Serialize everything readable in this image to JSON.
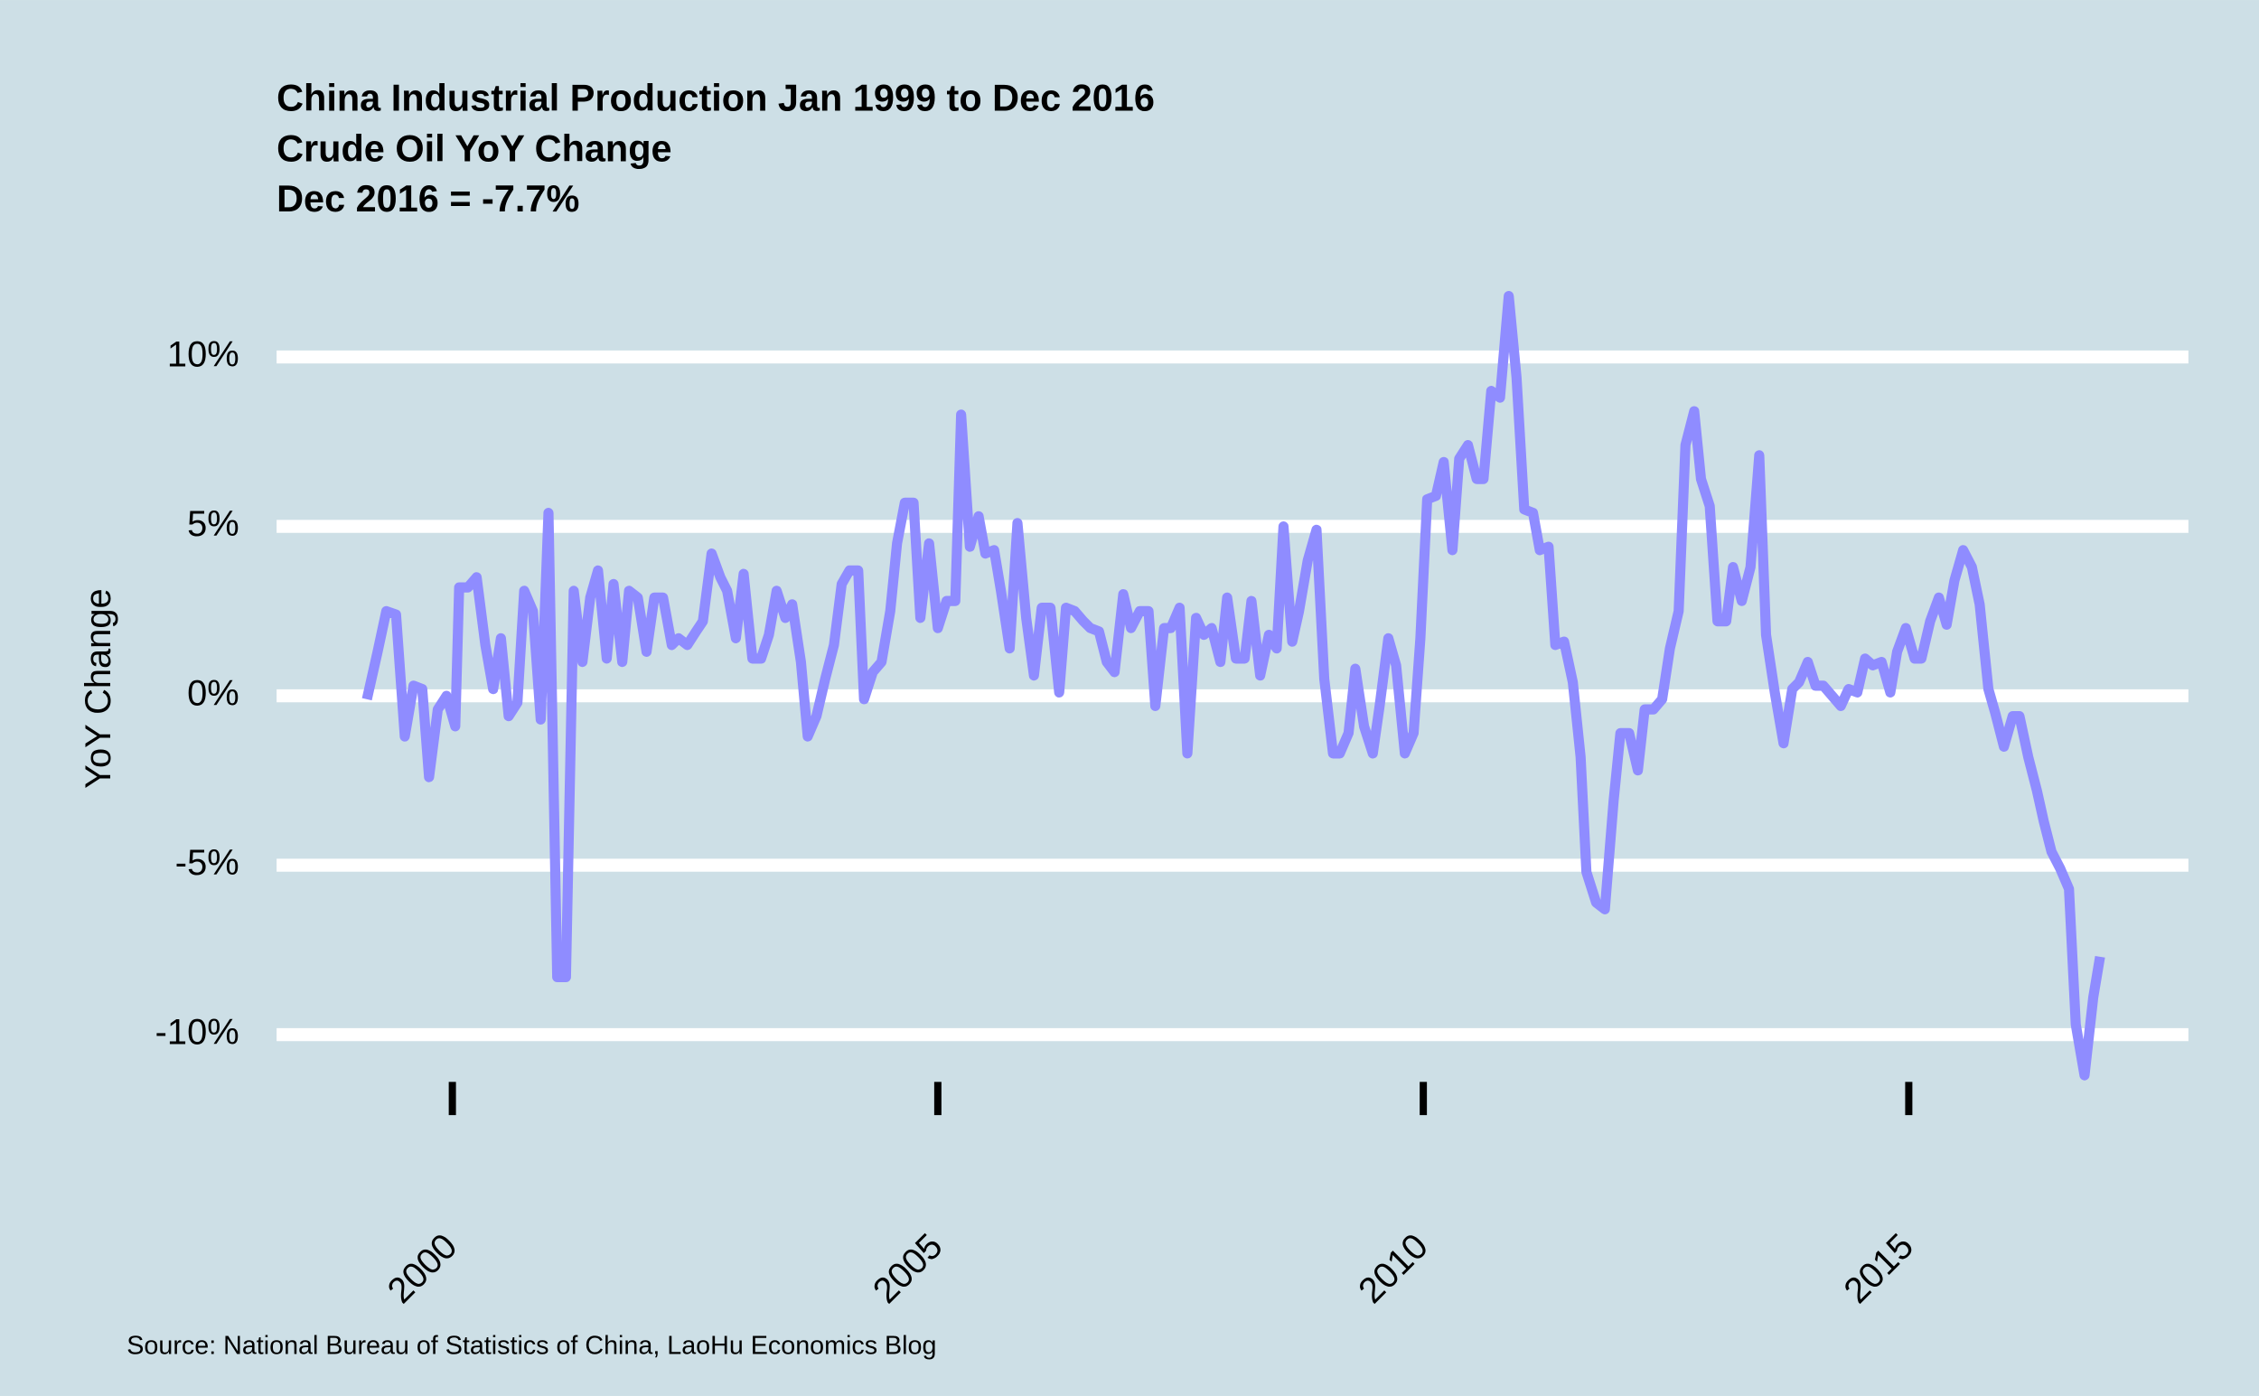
{
  "chart_data": {
    "type": "line",
    "title": "China Industrial Production Jan 1999 to Dec 2016",
    "subtitle": [
      "Crude Oil YoY Change",
      "Dec 2016 = -7.7%"
    ],
    "ylabel": "YoY Change",
    "caption": "Source: National Bureau of Statistics of China, LaoHu Economics Blog",
    "xlim": [
      1998.19,
      2017.88
    ],
    "xticks": [
      2000,
      2005,
      2010,
      2015
    ],
    "ylim": [
      -12.5,
      12.5
    ],
    "yticks": [
      {
        "value": -10,
        "label": "-10%"
      },
      {
        "value": -5,
        "label": "-5%"
      },
      {
        "value": 0,
        "label": "0%"
      },
      {
        "value": 5,
        "label": "5%"
      },
      {
        "value": 10,
        "label": "10%"
      }
    ],
    "grid": true,
    "background": "#cddfe6",
    "series": [
      {
        "color": "#8f8cff",
        "x": [
          1999.12,
          1999.23,
          1999.32,
          1999.42,
          1999.51,
          1999.6,
          1999.69,
          1999.76,
          1999.85,
          1999.94,
          2000.03,
          2000.07,
          2000.16,
          2000.25,
          2000.34,
          2000.42,
          2000.5,
          2000.58,
          2000.67,
          2000.74,
          2000.83,
          2000.91,
          2000.99,
          2001.08,
          2001.17,
          2001.25,
          2001.34,
          2001.42,
          2001.5,
          2001.59,
          2001.66,
          2001.75,
          2001.82,
          2001.91,
          2002.0,
          2002.08,
          2002.17,
          2002.26,
          2002.33,
          2002.42,
          2002.51,
          2002.58,
          2002.67,
          2002.76,
          2002.83,
          2002.92,
          2003.0,
          2003.09,
          2003.18,
          2003.26,
          2003.34,
          2003.43,
          2003.5,
          2003.59,
          2003.66,
          2003.75,
          2003.84,
          2003.93,
          2004.01,
          2004.09,
          2004.18,
          2004.24,
          2004.33,
          2004.42,
          2004.51,
          2004.58,
          2004.66,
          2004.75,
          2004.82,
          2004.91,
          2005.0,
          2005.09,
          2005.18,
          2005.24,
          2005.33,
          2005.42,
          2005.49,
          2005.58,
          2005.65,
          2005.74,
          2005.82,
          2005.91,
          2005.99,
          2006.07,
          2006.16,
          2006.25,
          2006.32,
          2006.41,
          2006.5,
          2006.57,
          2006.66,
          2006.74,
          2006.82,
          2006.91,
          2006.99,
          2007.08,
          2007.17,
          2007.24,
          2007.33,
          2007.4,
          2007.49,
          2007.57,
          2007.66,
          2007.74,
          2007.82,
          2007.91,
          2007.98,
          2008.07,
          2008.16,
          2008.23,
          2008.32,
          2008.41,
          2008.49,
          2008.56,
          2008.65,
          2008.72,
          2008.81,
          2008.9,
          2008.98,
          2009.07,
          2009.14,
          2009.23,
          2009.3,
          2009.39,
          2009.48,
          2009.55,
          2009.64,
          2009.72,
          2009.81,
          2009.9,
          2009.97,
          2010.04,
          2010.13,
          2010.21,
          2010.3,
          2010.37,
          2010.46,
          2010.55,
          2010.62,
          2010.7,
          2010.79,
          2010.88,
          2010.96,
          2011.04,
          2011.13,
          2011.2,
          2011.29,
          2011.36,
          2011.45,
          2011.54,
          2011.62,
          2011.68,
          2011.78,
          2011.87,
          2011.96,
          2012.03,
          2012.12,
          2012.21,
          2012.28,
          2012.37,
          2012.46,
          2012.54,
          2012.63,
          2012.7,
          2012.79,
          2012.86,
          2012.95,
          2013.03,
          2013.12,
          2013.19,
          2013.28,
          2013.37,
          2013.46,
          2013.53,
          2013.62,
          2013.71,
          2013.8,
          2013.87,
          2013.96,
          2014.04,
          2014.12,
          2014.21,
          2014.3,
          2014.38,
          2014.47,
          2014.55,
          2014.63,
          2014.72,
          2014.81,
          2014.88,
          2014.97,
          2015.06,
          2015.13,
          2015.22,
          2015.31,
          2015.39,
          2015.47,
          2015.56,
          2015.65,
          2015.73,
          2015.82,
          2015.89,
          2015.98,
          2016.07,
          2016.14,
          2016.23,
          2016.32,
          2016.39,
          2016.47,
          2016.56,
          2016.65,
          2016.72,
          2016.81,
          2016.9,
          2016.97
        ],
        "values": [
          -0.1,
          1.3,
          2.5,
          2.4,
          -1.2,
          0.3,
          0.2,
          -2.4,
          -0.4,
          0.0,
          -0.9,
          3.2,
          3.2,
          3.5,
          1.5,
          0.2,
          1.7,
          -0.6,
          -0.2,
          3.1,
          2.5,
          -0.7,
          5.4,
          -8.3,
          -8.3,
          3.1,
          1.0,
          2.9,
          3.7,
          1.1,
          3.3,
          1.0,
          3.1,
          2.9,
          1.3,
          2.9,
          2.9,
          1.5,
          1.7,
          1.5,
          1.9,
          2.2,
          4.2,
          3.5,
          3.1,
          1.7,
          3.6,
          1.1,
          1.1,
          1.8,
          3.1,
          2.3,
          2.7,
          1.0,
          -1.2,
          -0.6,
          0.5,
          1.5,
          3.3,
          3.7,
          3.7,
          -0.1,
          0.7,
          1.0,
          2.5,
          4.5,
          5.7,
          5.7,
          2.3,
          4.5,
          2.0,
          2.8,
          2.8,
          8.3,
          4.4,
          5.3,
          4.2,
          4.3,
          3.1,
          1.4,
          5.1,
          2.3,
          0.6,
          2.6,
          2.6,
          0.1,
          2.6,
          2.5,
          2.2,
          2.0,
          1.9,
          1.0,
          0.7,
          3.0,
          2.0,
          2.5,
          2.5,
          -0.3,
          2.0,
          2.0,
          2.6,
          -1.7,
          2.3,
          1.8,
          2.0,
          1.0,
          2.9,
          1.1,
          1.1,
          2.8,
          0.6,
          1.8,
          1.4,
          5.0,
          1.6,
          2.5,
          4.0,
          4.9,
          0.5,
          -1.7,
          -1.7,
          -1.1,
          0.8,
          -0.9,
          -1.7,
          -0.3,
          1.7,
          0.9,
          -1.7,
          -1.1,
          1.7,
          5.8,
          5.9,
          6.9,
          4.3,
          7.0,
          7.4,
          6.4,
          6.4,
          9.0,
          8.8,
          11.8,
          9.4,
          5.5,
          5.4,
          4.3,
          4.4,
          1.5,
          1.6,
          0.4,
          -1.8,
          -5.2,
          -6.1,
          -6.3,
          -3.1,
          -1.1,
          -1.1,
          -2.2,
          -0.4,
          -0.4,
          -0.1,
          1.4,
          2.5,
          7.4,
          8.4,
          6.4,
          5.6,
          2.2,
          2.2,
          3.8,
          2.8,
          3.8,
          7.1,
          1.8,
          0.1,
          -1.4,
          0.2,
          0.4,
          1.0,
          0.3,
          0.3,
          0.0,
          -0.3,
          0.2,
          0.1,
          1.1,
          0.9,
          1.0,
          0.1,
          1.3,
          2.0,
          1.1,
          1.1,
          2.2,
          2.9,
          2.1,
          3.4,
          4.3,
          3.8,
          2.7,
          0.2,
          -0.5,
          -1.5,
          -0.6,
          -0.6,
          -1.8,
          -2.8,
          -3.7,
          -4.6,
          -5.1,
          -5.7,
          -9.7,
          -11.2,
          -8.9,
          -7.7
        ]
      }
    ]
  }
}
